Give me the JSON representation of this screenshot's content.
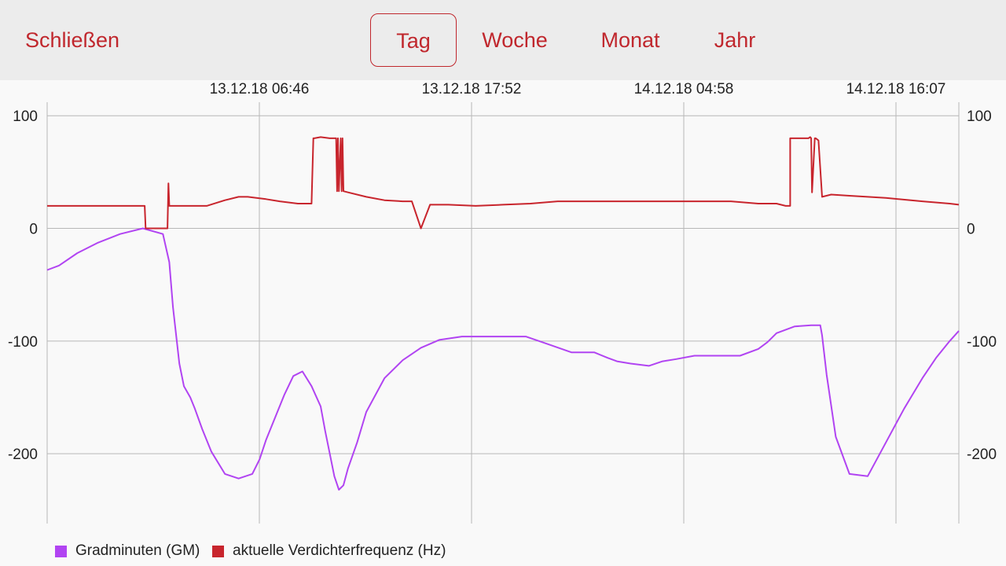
{
  "toolbar": {
    "close_label": "Schließen",
    "tabs": [
      {
        "label": "Tag",
        "selected": true
      },
      {
        "label": "Woche",
        "selected": false
      },
      {
        "label": "Monat",
        "selected": false
      },
      {
        "label": "Jahr",
        "selected": false
      }
    ]
  },
  "colors": {
    "accent": "#c0272d",
    "gm": "#b144f2",
    "freq": "#c8252d",
    "grid": "#b8b8b8"
  },
  "chart_data": {
    "type": "line",
    "x_tick_labels": [
      "13.12.18 06:46",
      "13.12.18 17:52",
      "14.12.18 04:58",
      "14.12.18 16:07"
    ],
    "y_ticks": [
      100,
      0,
      -100,
      -200
    ],
    "ylim": [
      -262,
      112
    ],
    "grid": true,
    "legend_position": "bottom-left",
    "series": [
      {
        "name": "Gradminuten (GM)",
        "color": "#b144f2",
        "x": [
          0,
          0.013,
          0.033,
          0.055,
          0.08,
          0.105,
          0.127,
          0.134,
          0.138,
          0.145,
          0.15,
          0.157,
          0.162,
          0.17,
          0.18,
          0.195,
          0.21,
          0.225,
          0.233,
          0.24,
          0.25,
          0.26,
          0.27,
          0.28,
          0.29,
          0.3,
          0.305,
          0.31,
          0.315,
          0.32,
          0.325,
          0.33,
          0.34,
          0.35,
          0.37,
          0.39,
          0.41,
          0.43,
          0.455,
          0.48,
          0.5,
          0.523,
          0.525,
          0.55,
          0.575,
          0.6,
          0.615,
          0.625,
          0.64,
          0.66,
          0.675,
          0.69,
          0.71,
          0.71,
          0.72,
          0.74,
          0.76,
          0.78,
          0.79,
          0.8,
          0.82,
          0.838,
          0.84,
          0.842,
          0.845,
          0.848,
          0.85,
          0.855,
          0.865,
          0.88,
          0.9,
          0.92,
          0.94,
          0.96,
          0.975,
          0.99,
          1.0
        ],
        "values": [
          -37,
          -33,
          -22,
          -13,
          -5,
          0,
          -5,
          -30,
          -70,
          -120,
          -140,
          -150,
          -160,
          -178,
          -198,
          -218,
          -222,
          -218,
          -205,
          -188,
          -168,
          -148,
          -131,
          -127,
          -140,
          -158,
          -180,
          -200,
          -220,
          -232,
          -228,
          -213,
          -190,
          -163,
          -133,
          -117,
          -106,
          -99,
          -96,
          -96,
          -96,
          -96,
          -96,
          -103,
          -110,
          -110,
          -115,
          -118,
          -120,
          -122,
          -118,
          -116,
          -113,
          -113,
          -113,
          -113,
          -113,
          -107,
          -101,
          -93,
          -87,
          -86,
          -86,
          -86,
          -86,
          -86,
          -95,
          -130,
          -185,
          -218,
          -220,
          -190,
          -160,
          -133,
          -115,
          -100,
          -91
        ]
      },
      {
        "name": "aktuelle Verdichterfrequenz (Hz)",
        "color": "#c8252d",
        "x": [
          0,
          0.013,
          0.04,
          0.08,
          0.107,
          0.108,
          0.108,
          0.132,
          0.133,
          0.134,
          0.134,
          0.145,
          0.16,
          0.175,
          0.195,
          0.21,
          0.22,
          0.24,
          0.255,
          0.275,
          0.29,
          0.292,
          0.293,
          0.3,
          0.31,
          0.317,
          0.318,
          0.319,
          0.32,
          0.322,
          0.323,
          0.324,
          0.325,
          0.33,
          0.35,
          0.37,
          0.39,
          0.4,
          0.41,
          0.42,
          0.44,
          0.47,
          0.5,
          0.53,
          0.56,
          0.6,
          0.62,
          0.65,
          0.7,
          0.75,
          0.78,
          0.8,
          0.81,
          0.815,
          0.815,
          0.818,
          0.83,
          0.835,
          0.837,
          0.838,
          0.839,
          0.842,
          0.843,
          0.846,
          0.85,
          0.86,
          0.88,
          0.92,
          0.96,
          0.99,
          1.0
        ],
        "values": [
          20,
          20,
          20,
          20,
          20,
          0,
          0,
          0,
          40,
          20,
          20,
          20,
          20,
          20,
          25,
          28,
          28,
          26,
          24,
          22,
          22,
          80,
          80,
          81,
          80,
          80,
          33,
          80,
          33,
          80,
          33,
          80,
          33,
          32,
          28,
          25,
          24,
          24,
          0,
          21,
          21,
          20,
          21,
          22,
          24,
          24,
          24,
          24,
          24,
          24,
          22,
          22,
          20,
          20,
          80,
          80,
          80,
          80,
          81,
          80,
          32,
          80,
          80,
          78,
          28,
          30,
          29,
          27,
          24,
          22,
          21
        ]
      }
    ]
  }
}
